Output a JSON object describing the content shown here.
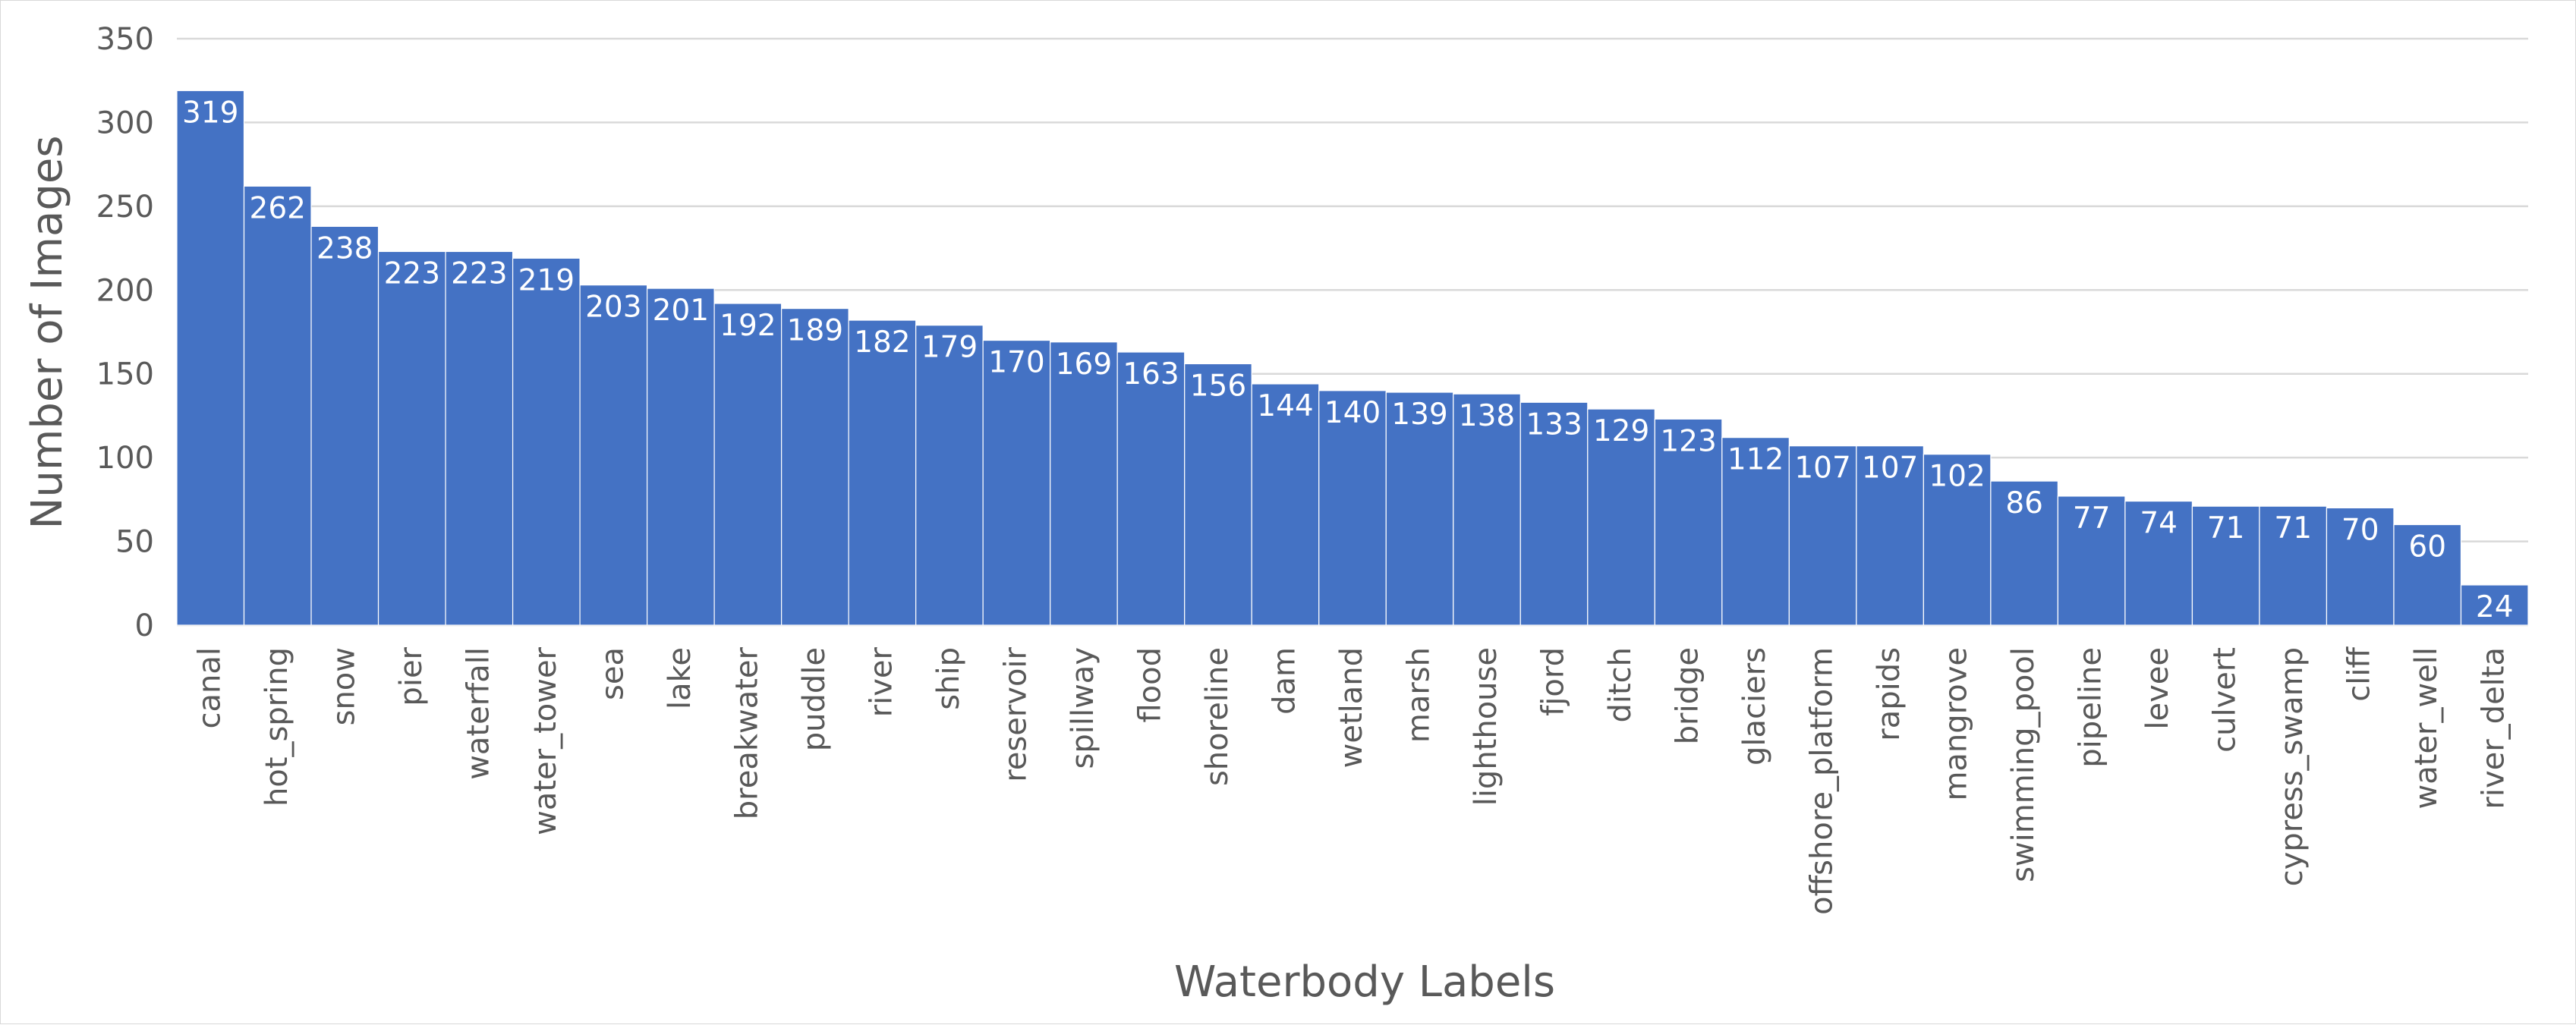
{
  "chart_data": {
    "type": "bar",
    "xlabel": "Waterbody Labels",
    "ylabel": "Number of Images",
    "ylim": [
      0,
      350
    ],
    "yticks": [
      0,
      50,
      100,
      150,
      200,
      250,
      300,
      350
    ],
    "grid": true,
    "legend": "none",
    "data_labels": true,
    "categories": [
      "canal",
      "hot_spring",
      "snow",
      "pier",
      "waterfall",
      "water_tower",
      "sea",
      "lake",
      "breakwater",
      "puddle",
      "river",
      "ship",
      "reservoir",
      "spillway",
      "flood",
      "shoreline",
      "dam",
      "wetland",
      "marsh",
      "lighthouse",
      "fjord",
      "ditch",
      "bridge",
      "glaciers",
      "offshore_platform",
      "rapids",
      "mangrove",
      "swimming_pool",
      "pipeline",
      "levee",
      "culvert",
      "cypress_swamp",
      "cliff",
      "water_well",
      "river_delta"
    ],
    "values": [
      319,
      262,
      238,
      223,
      223,
      219,
      203,
      201,
      192,
      189,
      182,
      179,
      170,
      169,
      163,
      156,
      144,
      140,
      139,
      138,
      133,
      129,
      123,
      112,
      107,
      107,
      102,
      86,
      77,
      74,
      71,
      71,
      70,
      60,
      24
    ],
    "colors": {
      "bar": "#4472c4",
      "grid": "#d9d9d9",
      "text": "#595959",
      "bar_label": "#ffffff"
    }
  }
}
